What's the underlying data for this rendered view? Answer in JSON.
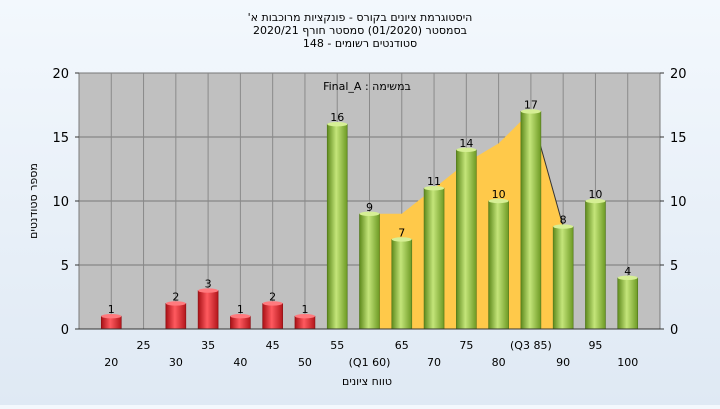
{
  "title_lines": [
    "היסטוגרמת ציונים בקורס - פונקציות מרוכבות א'",
    "בסמסטר  (01/2020)  סמסטר חורף  2020/21",
    "סטודנטים רשומים - 148"
  ],
  "colors": {
    "red_bar": "#e8242b",
    "green_bar": "#8fbf3a",
    "area_fill": "#ffc94a",
    "plot_bg": "#c0c0c0"
  },
  "chart_data": {
    "type": "bar",
    "subtitle": "Final_A : במשימה",
    "xlabel": "טווח ציונים",
    "ylabel": "מספר סטודנטים",
    "ylim": [
      0,
      20
    ],
    "yticks": [
      0,
      5,
      10,
      15,
      20
    ],
    "grid": true,
    "legend": "none",
    "x_ticks_upper": [
      "25",
      "35",
      "45",
      "55",
      "65",
      "75",
      "(Q3 85)",
      "95"
    ],
    "x_ticks_lower": [
      "20",
      "30",
      "40",
      "50",
      "(Q1 60)",
      "70",
      "80",
      "90",
      "100"
    ],
    "bars": [
      {
        "x": 20,
        "value": 1,
        "color": "red"
      },
      {
        "x": 30,
        "value": 2,
        "color": "red"
      },
      {
        "x": 35,
        "value": 3,
        "color": "red"
      },
      {
        "x": 40,
        "value": 1,
        "color": "red"
      },
      {
        "x": 45,
        "value": 2,
        "color": "red"
      },
      {
        "x": 50,
        "value": 1,
        "color": "red"
      },
      {
        "x": 55,
        "value": 16,
        "color": "green"
      },
      {
        "x": 60,
        "value": 9,
        "color": "green"
      },
      {
        "x": 65,
        "value": 7,
        "color": "green"
      },
      {
        "x": 70,
        "value": 11,
        "color": "green"
      },
      {
        "x": 75,
        "value": 14,
        "color": "green"
      },
      {
        "x": 80,
        "value": 10,
        "color": "green"
      },
      {
        "x": 85,
        "value": 17,
        "color": "green"
      },
      {
        "x": 90,
        "value": 8,
        "color": "green"
      },
      {
        "x": 95,
        "value": 10,
        "color": "green"
      },
      {
        "x": 100,
        "value": 4,
        "color": "green"
      }
    ],
    "area": [
      {
        "x": 60,
        "y": 9
      },
      {
        "x": 65,
        "y": 9
      },
      {
        "x": 70,
        "y": 11
      },
      {
        "x": 75,
        "y": 13
      },
      {
        "x": 80,
        "y": 14.5
      },
      {
        "x": 85,
        "y": 17
      },
      {
        "x": 90,
        "y": 8
      }
    ]
  }
}
